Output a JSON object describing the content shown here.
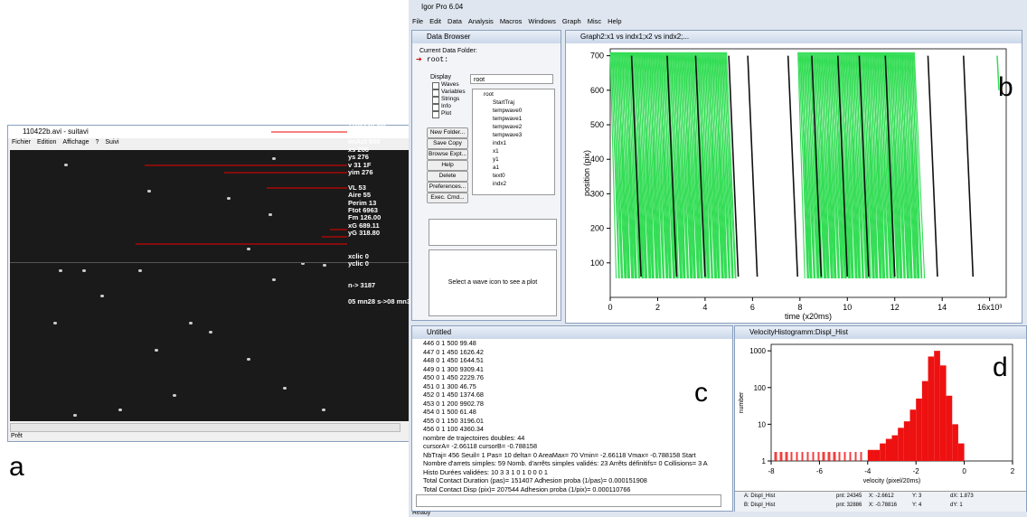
{
  "panel_labels": [
    "a",
    "b",
    "c",
    "d"
  ],
  "window_a": {
    "title": "110422b.avi - suitavi",
    "menu": [
      "Fichier",
      "Edition",
      "Affichage",
      "?",
      "Suivi"
    ],
    "status": "Prêt",
    "readouts": [
      "110422b.avi",
      "ImTot 8627",
      "ImAct 800",
      "xs 266",
      "ys 276",
      "v 31 1F",
      "yim 276",
      "VL 53",
      "Aire 55",
      "Perim 13",
      "Ftot 6963",
      "Fm 126.00",
      "xG 689.11",
      "yG 318.80",
      "xclic 0",
      "yclic 0",
      "n-> 3187",
      "05 mn28 s->08 mn3"
    ]
  },
  "igor": {
    "title": "Igor Pro 6.04",
    "menu": [
      "File",
      "Edit",
      "Data",
      "Analysis",
      "Macros",
      "Windows",
      "Graph",
      "Misc",
      "Help"
    ],
    "status": "Ready"
  },
  "data_browser": {
    "title": "Data Browser",
    "folder_label": "Current Data Folder:",
    "folder": "root:",
    "display_label": "Display",
    "checkboxes": [
      "Waves",
      "Variables",
      "Strings",
      "Info",
      "Plot"
    ],
    "dropdown": "root",
    "buttons": [
      "New Folder...",
      "Save Copy",
      "Browse Expt...",
      "Help",
      "Delete",
      "Preferences...",
      "Exec. Cmd..."
    ],
    "tree": [
      "root",
      "StartTraj",
      "tempwave0",
      "tempwave1",
      "tempwave2",
      "tempwave3",
      "indx1",
      "x1",
      "y1",
      "a1",
      "text0",
      "indx2"
    ],
    "hint": "Select a wave icon to see a plot"
  },
  "graph": {
    "title": "Graph2:x1 vs indx1;x2 vs indx2;...",
    "xlabel": "time (x20ms)",
    "ylabel": "position (pix)",
    "xlim": [
      0,
      16700
    ],
    "ylim": [
      0,
      720
    ],
    "xticks": [
      0,
      {
        "value": 2000,
        "label": "2"
      },
      {
        "value": 4000,
        "label": "4"
      },
      {
        "value": 6000,
        "label": "6"
      },
      {
        "value": 8000,
        "label": "8"
      },
      {
        "value": 10000,
        "label": "10"
      },
      {
        "value": 12000,
        "label": "12"
      },
      {
        "value": 14000,
        "label": "14"
      },
      {
        "value": 16000,
        "label": "16x10³"
      }
    ],
    "yticks": [
      100,
      200,
      300,
      400,
      500,
      600,
      700
    ],
    "color": "#111111",
    "trajectories": [
      {
        "x": [
          900,
          1300
        ],
        "y": [
          700,
          60
        ]
      },
      {
        "x": [
          2400,
          2800
        ],
        "y": [
          700,
          60
        ]
      },
      {
        "x": [
          3600,
          4000
        ],
        "y": [
          700,
          60
        ]
      },
      {
        "x": [
          5000,
          5400
        ],
        "y": [
          700,
          60
        ]
      },
      {
        "x": [
          5800,
          6200
        ],
        "y": [
          700,
          60
        ]
      },
      {
        "x": [
          7500,
          7900
        ],
        "y": [
          700,
          60
        ]
      },
      {
        "x": [
          8500,
          8900
        ],
        "y": [
          700,
          60
        ]
      },
      {
        "x": [
          9600,
          10000
        ],
        "y": [
          700,
          60
        ]
      },
      {
        "x": [
          10500,
          10900
        ],
        "y": [
          700,
          60
        ]
      },
      {
        "x": [
          11600,
          12000
        ],
        "y": [
          700,
          60
        ]
      },
      {
        "x": [
          13400,
          13800
        ],
        "y": [
          700,
          60
        ]
      },
      {
        "x": [
          14900,
          15300
        ],
        "y": [
          700,
          60
        ]
      }
    ]
  },
  "console": {
    "title": "Untitled",
    "lines": [
      "446  0  1  500  99.48",
      "447  0  1  450  1626.42",
      "448  0  1  450  1644.51",
      "449  0  1  300  9309.41",
      "450  0  1  450  2229.76",
      "451  0  1  300  46.75",
      "452  0  1  450  1374.68",
      "453  0  1  200  9902.78",
      "454  0  1  500  61.48",
      "455  0  1  150  3196.01",
      "456  0  1  100  4360.34",
      "nombre de trajectoires doubles:  44",
      "cursorA=  -2.66118   cursorB=  -0.788158",
      "NbTraj=  456  Seuil=  1  Pas=  10  delta=  0  AreaMax=  70  Vmin=  -2.66118  Vmax=  -0.788158  Start",
      "Nombre d'arrets simples:  59  Nomb. d'arrêts simples validés:  23  Arrêts définitifs=  0  Collisions=  3  A",
      "  Histo Durées validées:  10  3  3  1  0  1  0  0  0  1",
      "Total Contact Duration (pas)=  151407   Adhesion proba (1/pas)=  0.000151908",
      "  Total Contact Disp (pix)=  207544   Adhesion proba (1/pix)=  0.000110766",
      "number of arrests colocalized within   8  pixels=  0"
    ]
  },
  "histogram": {
    "title": "VelocityHistogramm:Displ_Hist",
    "xlabel": "velocity (pixel/20ms)",
    "ylabel": "number",
    "log_y": true,
    "xlim": [
      -8,
      2
    ],
    "ylim": [
      1,
      1500
    ],
    "xticks": [
      -8,
      -6,
      -4,
      -2,
      0,
      2
    ],
    "yticks": [
      1,
      10,
      100,
      1000
    ],
    "color": "#ee1111",
    "bins": [
      -4,
      -3.75,
      -3.5,
      -3.25,
      -3,
      -2.75,
      -2.5,
      -2.25,
      -2,
      -1.75,
      -1.5,
      -1.25,
      -1,
      -0.75,
      -0.5,
      -0.25,
      0
    ],
    "counts": [
      2,
      2,
      3,
      4,
      5,
      8,
      12,
      25,
      50,
      150,
      700,
      1000,
      400,
      60,
      10,
      3
    ],
    "cursor_info": [
      "A: Displ_Hist",
      "B: Displ_Hist",
      "pnt: 24345",
      "X: -2.6612",
      "Y: 3",
      "dX: 1.873",
      "pnt: 32886",
      "X: -0.78816",
      "Y: 4",
      "dY: 1"
    ]
  }
}
